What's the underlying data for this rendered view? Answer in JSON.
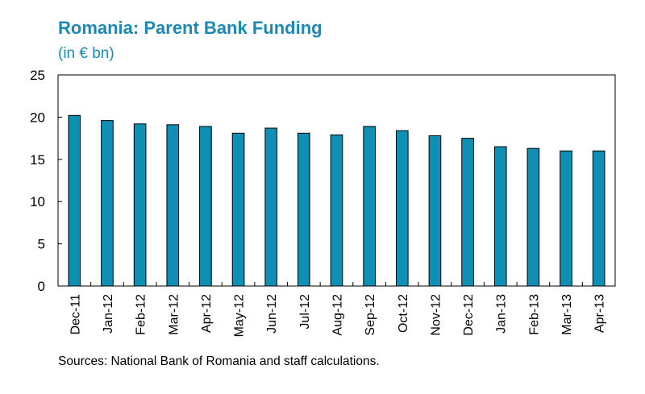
{
  "header": {
    "title": "Romania: Parent Bank Funding",
    "subtitle": "(in € bn)"
  },
  "footer": {
    "source": "Sources:  National Bank of Romania and staff calculations."
  },
  "colors": {
    "bar": "#0f8fb3",
    "bar_edge": "#000000",
    "title": "#1a8ab5"
  },
  "chart_data": {
    "type": "bar",
    "title": "Romania: Parent Bank Funding",
    "subtitle": "(in € bn)",
    "categories": [
      "Dec-11",
      "Jan-12",
      "Feb-12",
      "Mar-12",
      "Apr-12",
      "May-12",
      "Jun-12",
      "Jul-12",
      "Aug-12",
      "Sep-12",
      "Oct-12",
      "Nov-12",
      "Dec-12",
      "Jan-13",
      "Feb-13",
      "Mar-13",
      "Apr-13"
    ],
    "values": [
      20.2,
      19.6,
      19.2,
      19.1,
      18.9,
      18.1,
      18.7,
      18.1,
      17.9,
      18.9,
      18.4,
      17.8,
      17.5,
      16.5,
      16.3,
      16.0,
      16.0
    ],
    "ylim": [
      0,
      25
    ],
    "yticks": [
      0,
      5,
      10,
      15,
      20,
      25
    ],
    "xlabel": "",
    "ylabel": "",
    "grid": false,
    "legend": "none"
  }
}
